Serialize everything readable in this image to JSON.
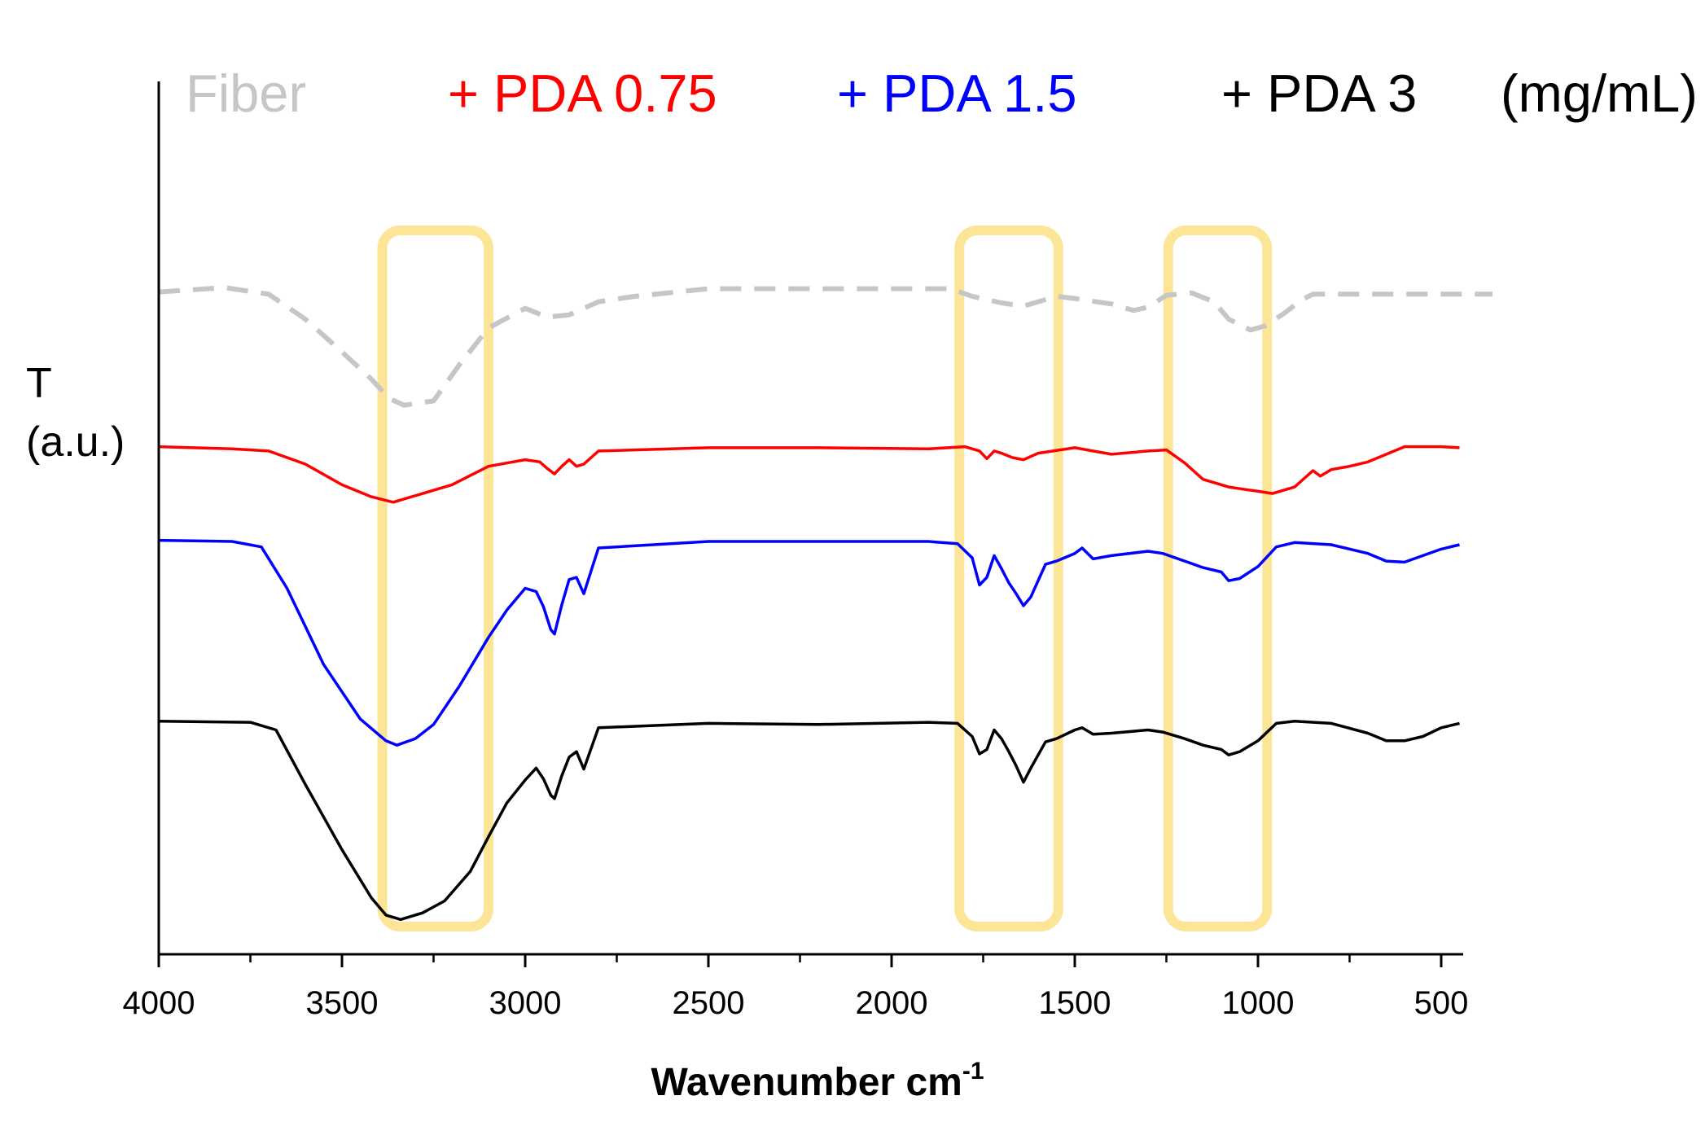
{
  "chart_data": {
    "type": "line",
    "xlabel": "Wavenumber cm",
    "xlabel_superscript": "-1",
    "ylabel_line1": "T",
    "ylabel_line2": "(a.u.)",
    "x_reversed": true,
    "xlim": [
      4000,
      450
    ],
    "xticks": [
      4000,
      3500,
      3000,
      2500,
      2000,
      1500,
      1000,
      500
    ],
    "legend": [
      {
        "label": "Fiber",
        "color": "#c6c6c6"
      },
      {
        "label": "+ PDA 0.75",
        "color": "#ff0000"
      },
      {
        "label": "+ PDA 1.5",
        "color": "#0000ff"
      },
      {
        "label": "+ PDA 3",
        "color": "#000000"
      },
      {
        "label": "(mg/mL)",
        "color": "#000000"
      }
    ],
    "highlight_bands": [
      [
        3390,
        3100
      ],
      [
        1815,
        1545
      ],
      [
        1245,
        975
      ]
    ],
    "highlight_color": "#fde598",
    "series": [
      {
        "name": "Fiber",
        "color": "#c6c6c6",
        "dashed": true,
        "x": [
          4000,
          3820,
          3700,
          3600,
          3500,
          3420,
          3370,
          3330,
          3250,
          3180,
          3100,
          3000,
          2940,
          2880,
          2800,
          2700,
          2500,
          2200,
          1900,
          1840,
          1780,
          1700,
          1640,
          1550,
          1500,
          1400,
          1340,
          1300,
          1250,
          1180,
          1120,
          1080,
          1020,
          980,
          930,
          880,
          850,
          750,
          500,
          360
        ],
        "y": [
          268,
          264,
          270,
          293,
          323,
          348,
          366,
          372,
          368,
          335,
          301,
          283,
          291,
          289,
          277,
          272,
          265,
          265,
          265,
          265,
          272,
          278,
          281,
          272,
          274,
          279,
          285,
          282,
          271,
          269,
          277,
          293,
          303,
          299,
          288,
          275,
          270,
          270,
          270,
          270
        ]
      },
      {
        "name": "+ PDA 0.75",
        "color": "#ff0000",
        "x": [
          4000,
          3800,
          3700,
          3600,
          3500,
          3420,
          3360,
          3300,
          3200,
          3100,
          3000,
          2960,
          2940,
          2920,
          2900,
          2880,
          2860,
          2840,
          2800,
          2500,
          2200,
          1900,
          1800,
          1760,
          1740,
          1720,
          1700,
          1670,
          1640,
          1600,
          1500,
          1400,
          1300,
          1250,
          1200,
          1150,
          1080,
          1040,
          1000,
          960,
          900,
          850,
          830,
          800,
          750,
          700,
          600,
          550,
          500,
          450
        ],
        "y": [
          410,
          412,
          414,
          426,
          445,
          456,
          461,
          455,
          445,
          428,
          422,
          424,
          430,
          435,
          428,
          422,
          428,
          426,
          414,
          411,
          411,
          412,
          410,
          414,
          421,
          414,
          416,
          420,
          422,
          416,
          411,
          417,
          414,
          413,
          425,
          440,
          447,
          449,
          451,
          453,
          447,
          432,
          437,
          431,
          428,
          424,
          410,
          410,
          410,
          411
        ]
      },
      {
        "name": "+ PDA 1.5",
        "color": "#0000ff",
        "x": [
          4000,
          3800,
          3720,
          3650,
          3550,
          3450,
          3380,
          3350,
          3300,
          3250,
          3180,
          3100,
          3050,
          3000,
          2970,
          2950,
          2930,
          2920,
          2900,
          2880,
          2860,
          2840,
          2800,
          2500,
          2200,
          1900,
          1820,
          1780,
          1760,
          1740,
          1720,
          1700,
          1680,
          1660,
          1640,
          1620,
          1580,
          1550,
          1500,
          1480,
          1450,
          1400,
          1300,
          1260,
          1200,
          1150,
          1100,
          1080,
          1050,
          1000,
          950,
          900,
          800,
          700,
          650,
          600,
          550,
          500,
          450
        ],
        "y": [
          496,
          497,
          502,
          540,
          610,
          660,
          680,
          684,
          678,
          665,
          630,
          585,
          560,
          540,
          543,
          557,
          578,
          582,
          555,
          532,
          530,
          545,
          503,
          497,
          497,
          497,
          499,
          512,
          537,
          530,
          510,
          522,
          535,
          545,
          556,
          548,
          518,
          515,
          508,
          503,
          513,
          510,
          506,
          508,
          515,
          521,
          525,
          533,
          531,
          520,
          502,
          498,
          500,
          508,
          515,
          516,
          510,
          504,
          500
        ]
      },
      {
        "name": "+ PDA 3",
        "color": "#000000",
        "x": [
          4000,
          3750,
          3680,
          3600,
          3500,
          3420,
          3380,
          3340,
          3280,
          3220,
          3150,
          3100,
          3050,
          3000,
          2970,
          2950,
          2930,
          2920,
          2900,
          2880,
          2860,
          2840,
          2800,
          2500,
          2200,
          1900,
          1820,
          1780,
          1760,
          1740,
          1720,
          1700,
          1680,
          1660,
          1640,
          1620,
          1580,
          1550,
          1500,
          1480,
          1450,
          1400,
          1300,
          1260,
          1200,
          1150,
          1100,
          1080,
          1050,
          1000,
          950,
          900,
          800,
          700,
          650,
          600,
          550,
          500,
          450
        ],
        "y": [
          662,
          663,
          670,
          720,
          780,
          824,
          840,
          844,
          838,
          827,
          800,
          768,
          737,
          716,
          705,
          715,
          730,
          733,
          712,
          695,
          690,
          706,
          668,
          664,
          665,
          663,
          664,
          676,
          692,
          688,
          670,
          678,
          690,
          703,
          718,
          705,
          681,
          678,
          670,
          668,
          674,
          673,
          670,
          672,
          678,
          684,
          688,
          693,
          690,
          680,
          664,
          662,
          664,
          673,
          680,
          680,
          676,
          668,
          664
        ]
      }
    ]
  }
}
